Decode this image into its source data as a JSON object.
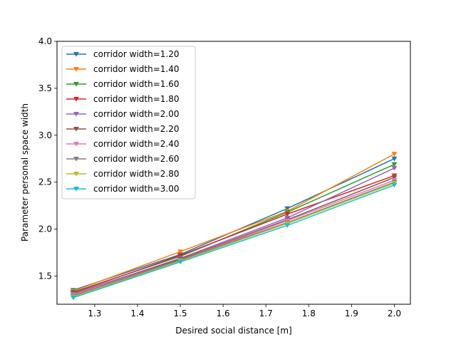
{
  "chart_data": {
    "type": "line",
    "title": "",
    "xlabel": "Desired social distance [m]",
    "ylabel": "Parameter personal space width",
    "xlim": [
      1.212,
      2.0375
    ],
    "ylim": [
      1.2,
      4.0
    ],
    "xticks": [
      "1.3",
      "1.4",
      "1.5",
      "1.6",
      "1.7",
      "1.8",
      "1.9",
      "2.0"
    ],
    "yticks": [
      "1.5",
      "2.0",
      "2.5",
      "3.0",
      "3.5",
      "4.0"
    ],
    "grid": false,
    "legend_position": "top-left",
    "marker": "triangle-down",
    "x": [
      1.25,
      1.5,
      1.75,
      2.0
    ],
    "series": [
      {
        "name": "corridor width=1.20",
        "color": "#1f77b4",
        "values": [
          1.35,
          1.73,
          2.22,
          2.75
        ]
      },
      {
        "name": "corridor width=1.40",
        "color": "#ff7f0e",
        "values": [
          1.34,
          1.76,
          2.19,
          2.8
        ]
      },
      {
        "name": "corridor width=1.60",
        "color": "#2ca02c",
        "values": [
          1.33,
          1.71,
          2.18,
          2.69
        ]
      },
      {
        "name": "corridor width=1.80",
        "color": "#d62728",
        "values": [
          1.32,
          1.72,
          2.16,
          2.57
        ]
      },
      {
        "name": "corridor width=2.00",
        "color": "#9467bd",
        "values": [
          1.31,
          1.69,
          2.12,
          2.65
        ]
      },
      {
        "name": "corridor width=2.20",
        "color": "#8c564b",
        "values": [
          1.3,
          1.68,
          2.1,
          2.55
        ]
      },
      {
        "name": "corridor width=2.40",
        "color": "#e377c2",
        "values": [
          1.3,
          1.67,
          2.09,
          2.52
        ]
      },
      {
        "name": "corridor width=2.60",
        "color": "#7f7f7f",
        "values": [
          1.29,
          1.67,
          2.07,
          2.5
        ]
      },
      {
        "name": "corridor width=2.80",
        "color": "#bcbd22",
        "values": [
          1.28,
          1.66,
          2.06,
          2.49
        ]
      },
      {
        "name": "corridor width=3.00",
        "color": "#17becf",
        "values": [
          1.27,
          1.65,
          2.04,
          2.47
        ]
      }
    ]
  }
}
